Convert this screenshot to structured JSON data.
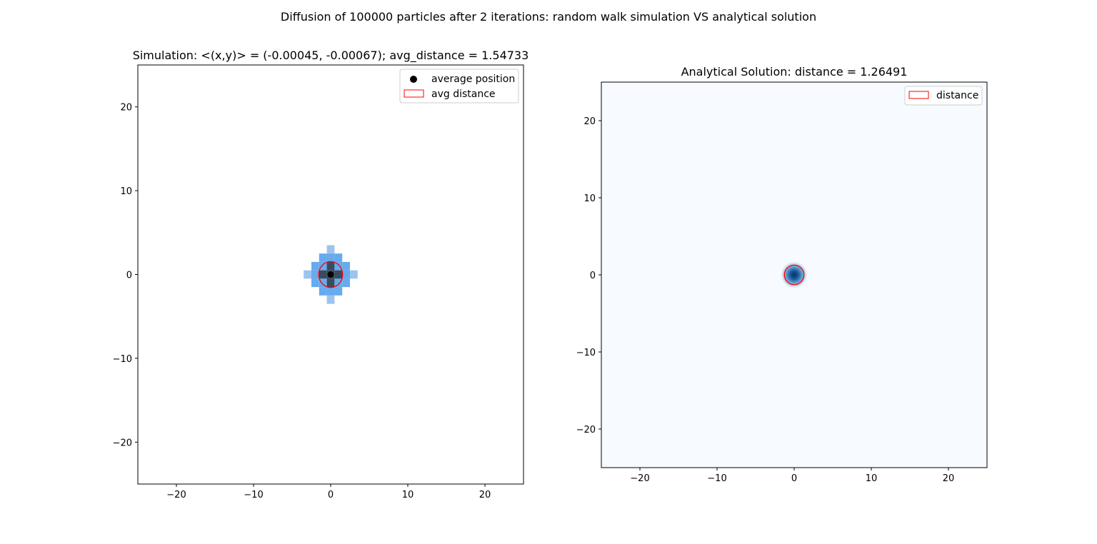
{
  "figure": {
    "suptitle": "Diffusion of 100000 particles after 2 iterations: random walk simulation VS analytical solution"
  },
  "chart_data": [
    {
      "type": "heatmap",
      "title": "Simulation: <(x,y)> = (-0.00045, -0.00067); avg_distance = 1.54733",
      "xlabel": "",
      "ylabel": "",
      "xlim": [
        -25,
        25
      ],
      "ylim": [
        -25,
        25
      ],
      "xticks": [
        -20,
        -10,
        0,
        10,
        20
      ],
      "yticks": [
        -20,
        -10,
        0,
        10,
        20
      ],
      "xtick_labels": [
        "−20",
        "−10",
        "0",
        "10",
        "20"
      ],
      "ytick_labels": [
        "−20",
        "−10",
        "0",
        "10",
        "20"
      ],
      "grid": false,
      "legend_position": "upper-right",
      "legend": [
        {
          "label": "average position",
          "marker": "dot",
          "color": "#000000"
        },
        {
          "label": "avg distance",
          "marker": "rect",
          "color": "#ff0000"
        }
      ],
      "average_position": {
        "x": -0.00045,
        "y": -0.00067
      },
      "avg_distance": 1.54733,
      "cell_size": 1,
      "cells": [
        {
          "x": 0,
          "y": 3,
          "level": 1
        },
        {
          "x": -1,
          "y": 2,
          "level": 2
        },
        {
          "x": 0,
          "y": 2,
          "level": 2
        },
        {
          "x": 1,
          "y": 2,
          "level": 2
        },
        {
          "x": -2,
          "y": 1,
          "level": 2
        },
        {
          "x": -1,
          "y": 1,
          "level": 2
        },
        {
          "x": 0,
          "y": 1,
          "level": 4
        },
        {
          "x": 1,
          "y": 1,
          "level": 2
        },
        {
          "x": 2,
          "y": 1,
          "level": 2
        },
        {
          "x": -3,
          "y": 0,
          "level": 1
        },
        {
          "x": -2,
          "y": 0,
          "level": 2
        },
        {
          "x": -1,
          "y": 0,
          "level": 4
        },
        {
          "x": 0,
          "y": 0,
          "level": 4
        },
        {
          "x": 1,
          "y": 0,
          "level": 4
        },
        {
          "x": 2,
          "y": 0,
          "level": 2
        },
        {
          "x": 3,
          "y": 0,
          "level": 1
        },
        {
          "x": -2,
          "y": -1,
          "level": 2
        },
        {
          "x": -1,
          "y": -1,
          "level": 2
        },
        {
          "x": 0,
          "y": -1,
          "level": 4
        },
        {
          "x": 1,
          "y": -1,
          "level": 2
        },
        {
          "x": 2,
          "y": -1,
          "level": 2
        },
        {
          "x": -1,
          "y": -2,
          "level": 2
        },
        {
          "x": 0,
          "y": -2,
          "level": 2
        },
        {
          "x": 1,
          "y": -2,
          "level": 2
        },
        {
          "x": 0,
          "y": -3,
          "level": 1
        }
      ],
      "level_colors": {
        "1": "#9cc4ee",
        "2": "#67aaee",
        "3": "#3d6f9f",
        "4": "#3a4b5f"
      }
    },
    {
      "type": "heatmap",
      "title": "Analytical Solution: distance = 1.26491",
      "xlabel": "",
      "ylabel": "",
      "xlim": [
        -25,
        25
      ],
      "ylim": [
        -25,
        25
      ],
      "xticks": [
        -20,
        -10,
        0,
        10,
        20
      ],
      "yticks": [
        -20,
        -10,
        0,
        10,
        20
      ],
      "xtick_labels": [
        "−20",
        "−10",
        "0",
        "10",
        "20"
      ],
      "ytick_labels": [
        "−20",
        "−10",
        "0",
        "10",
        "20"
      ],
      "grid": false,
      "legend_position": "upper-right",
      "legend": [
        {
          "label": "distance",
          "marker": "rect",
          "color": "#ff0000"
        }
      ],
      "distance": 1.26491,
      "center": {
        "x": 0,
        "y": 0
      },
      "background_color": "#f7fbff",
      "peak_color": "#08306b"
    }
  ]
}
